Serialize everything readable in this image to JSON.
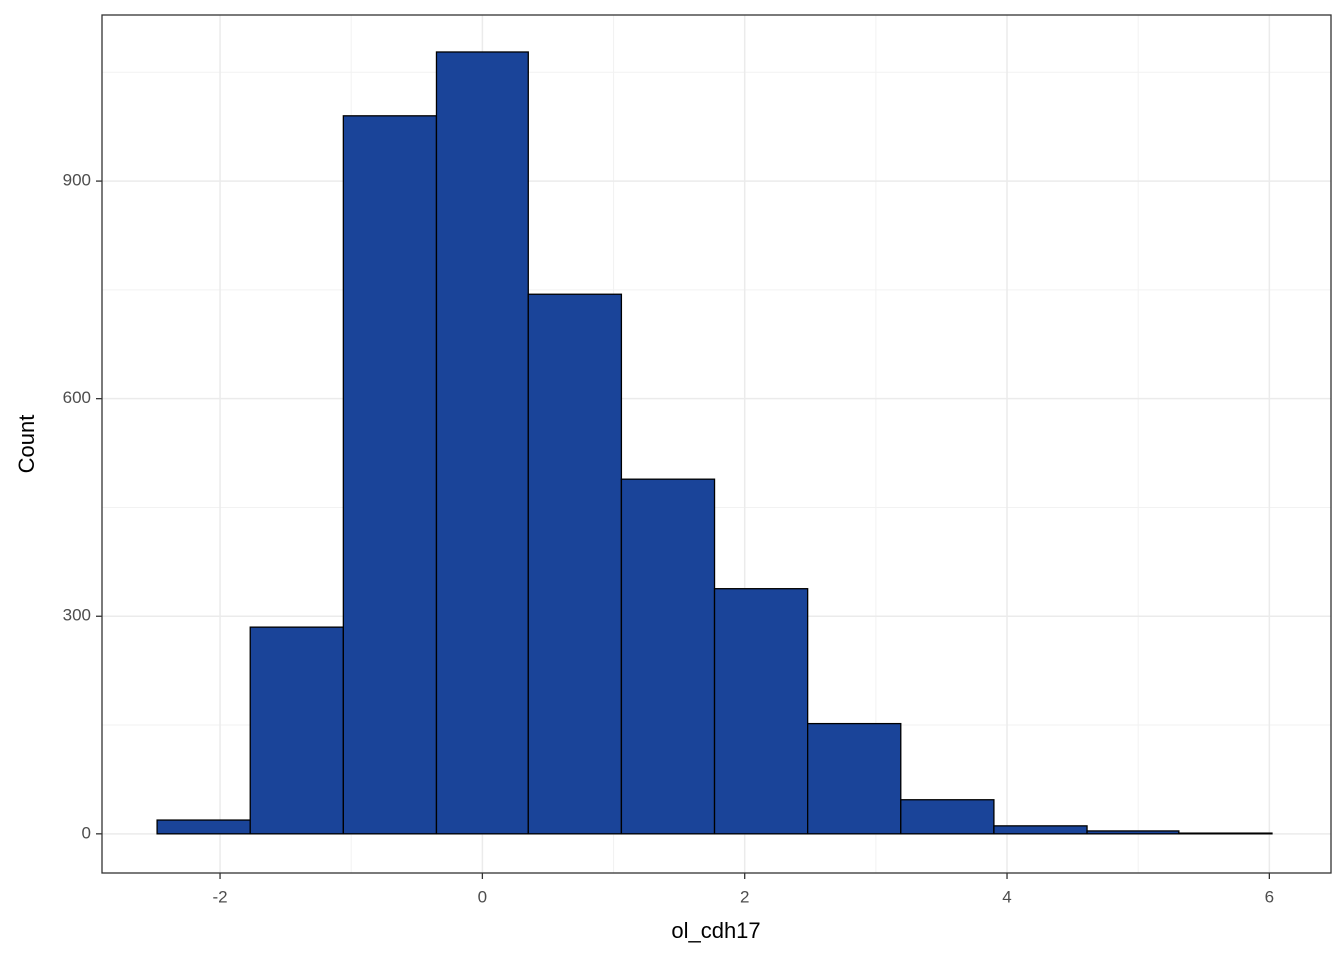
{
  "chart_data": {
    "type": "histogram",
    "x_label": "ol_cdh17",
    "y_label": "Count",
    "bins": [
      -2.48,
      -1.77,
      -1.06,
      -0.35,
      0.35,
      1.06,
      1.77,
      2.48,
      3.19,
      3.9,
      4.61,
      5.31,
      6.02
    ],
    "values": [
      19,
      285,
      990,
      1078,
      744,
      489,
      338,
      152,
      47,
      11,
      4,
      1
    ],
    "color": "#1a4499",
    "edge_color": "#000000",
    "xlim": [
      -2.9,
      6.47
    ],
    "ylim": [
      -54,
      1129
    ],
    "xticks": [
      -2,
      0,
      2,
      4,
      6
    ],
    "yticks": [
      0,
      300,
      600,
      900
    ],
    "x_minor_grid": [
      -1,
      1,
      3,
      5
    ],
    "y_minor_grid": [
      150,
      450,
      750,
      1050
    ],
    "grid": true
  }
}
